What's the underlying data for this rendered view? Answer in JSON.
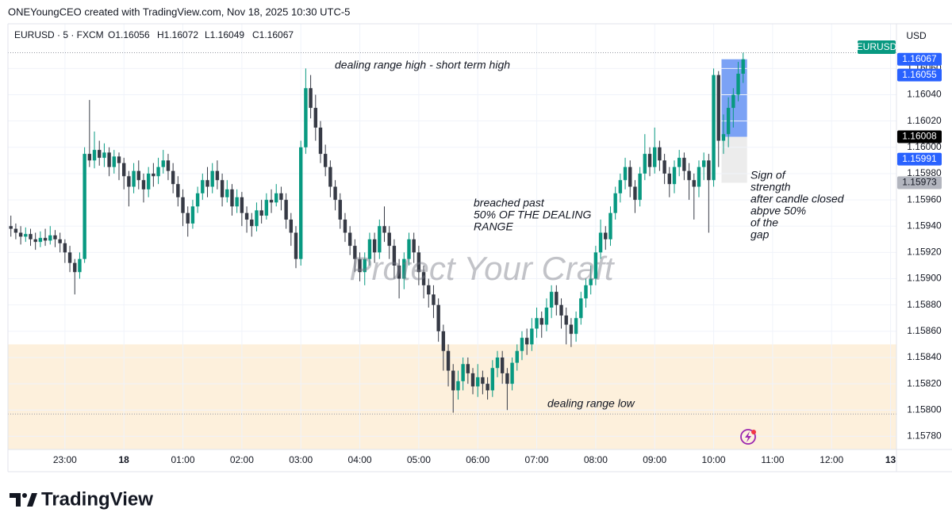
{
  "header": {
    "credit": "ONEYoungCEO created with TradingView.com, Nov 18, 2025 10:30 UTC-5",
    "symbol": "EURUSD · 5 · FXCM",
    "ohlc": [
      "O1.16056",
      "H1.16072",
      "L1.16049",
      "C1.16067"
    ],
    "currency": "USD",
    "symbol_tag": "EURUSD"
  },
  "footer": {
    "logo": "TradingView"
  },
  "chart_data": {
    "type": "candlestick",
    "up_color": "#089981",
    "down_color": "#363a45",
    "x": [
      1325,
      1330,
      1335,
      1340,
      1345,
      1350,
      1355,
      1360,
      1365,
      1370,
      1375,
      1380,
      1385,
      1390,
      1395,
      1400,
      1405,
      1410,
      1415,
      1420,
      1425,
      1430,
      1435,
      1440,
      1445,
      1450,
      1455,
      1460,
      1465,
      1470,
      1475,
      1480,
      1485,
      1490,
      1495,
      1500,
      1505,
      1510,
      1515,
      1520,
      1525,
      1530,
      1535,
      1540,
      1545,
      1550,
      1555,
      1560,
      1565,
      1570,
      1575,
      1580,
      1585,
      1590,
      1595,
      1600,
      1605,
      1610,
      1615,
      1620,
      1625,
      1630,
      1635,
      1640,
      1645,
      1650,
      1655,
      1660,
      1665,
      1670,
      1675,
      1680,
      1685,
      1690,
      1695,
      1700,
      1705,
      1710,
      1715,
      1720,
      1725,
      1730,
      1735,
      1740,
      1745,
      1750,
      1755,
      1760,
      1765,
      1770,
      1775,
      1780,
      1785,
      1790,
      1795,
      1800,
      1805,
      1810,
      1815,
      1820,
      1825,
      1830,
      1835,
      1840,
      1845,
      1850,
      1855,
      1860,
      1865,
      1870,
      1875,
      1880,
      1885,
      1890,
      1895,
      1900,
      1905,
      1910,
      1915,
      1920,
      1925,
      1930,
      1935,
      1940,
      1945,
      1950,
      1955,
      1960,
      1965,
      1970,
      1975,
      1980,
      1985,
      1990,
      1995,
      2000,
      2005,
      2010,
      2015,
      2020,
      2025,
      2030,
      2035,
      2040,
      2045,
      2050,
      2055,
      2060,
      2065,
      2070
    ],
    "open": [
      1.1594,
      1.15938,
      1.15935,
      1.15932,
      1.15934,
      1.1593,
      1.15928,
      1.15931,
      1.15929,
      1.15933,
      1.1593,
      1.15927,
      1.1592,
      1.15912,
      1.15905,
      1.15915,
      1.15995,
      1.1599,
      1.15998,
      1.15992,
      1.15996,
      1.15985,
      1.15993,
      1.15988,
      1.15978,
      1.1597,
      1.15982,
      1.15975,
      1.15968,
      1.1598,
      1.15978,
      1.15985,
      1.1599,
      1.15982,
      1.15972,
      1.15962,
      1.1595,
      1.15942,
      1.15955,
      1.15965,
      1.15975,
      1.1597,
      1.15982,
      1.15975,
      1.15962,
      1.15968,
      1.15955,
      1.15962,
      1.1595,
      1.15945,
      1.1594,
      1.15952,
      1.15948,
      1.1596,
      1.15958,
      1.15965,
      1.1596,
      1.15945,
      1.15935,
      1.15915,
      1.16,
      1.16045,
      1.1603,
      1.16015,
      1.15995,
      1.15985,
      1.1597,
      1.1596,
      1.15945,
      1.15935,
      1.15925,
      1.15915,
      1.15905,
      1.15915,
      1.1593,
      1.1592,
      1.1594,
      1.15935,
      1.15925,
      1.1591,
      1.159,
      1.15915,
      1.1593,
      1.1592,
      1.15905,
      1.15895,
      1.15888,
      1.1588,
      1.1586,
      1.15845,
      1.1583,
      1.15815,
      1.15822,
      1.15835,
      1.15828,
      1.15818,
      1.15825,
      1.1582,
      1.15815,
      1.15832,
      1.1584,
      1.15828,
      1.1582,
      1.15836,
      1.15845,
      1.15855,
      1.1585,
      1.15862,
      1.1587,
      1.15865,
      1.15878,
      1.1589,
      1.1588,
      1.15872,
      1.15865,
      1.15858,
      1.1587,
      1.15885,
      1.15895,
      1.159,
      1.1592,
      1.15935,
      1.1593,
      1.1595,
      1.15965,
      1.15975,
      1.15985,
      1.1597,
      1.1596,
      1.1598,
      1.15995,
      1.15985,
      1.16,
      1.1599,
      1.1598,
      1.15972,
      1.15985,
      1.15992,
      1.15982,
      1.15975,
      1.1597,
      1.15985,
      1.1599,
      1.15975,
      1.16055,
      1.16005,
      1.1601,
      1.1603,
      1.1604,
      1.16056
    ],
    "high": [
      1.15948,
      1.15942,
      1.1594,
      1.15939,
      1.15938,
      1.15935,
      1.15936,
      1.15938,
      1.1594,
      1.15937,
      1.15935,
      1.1593,
      1.15925,
      1.15915,
      1.1592,
      1.16,
      1.16036,
      1.16012,
      1.16005,
      1.16003,
      1.16,
      1.15998,
      1.15996,
      1.15992,
      1.15982,
      1.15988,
      1.1599,
      1.1598,
      1.15985,
      1.15988,
      1.15992,
      1.15998,
      1.15995,
      1.15988,
      1.15978,
      1.15968,
      1.15955,
      1.1596,
      1.1597,
      1.1598,
      1.15985,
      1.15988,
      1.1599,
      1.1598,
      1.15975,
      1.15972,
      1.15968,
      1.15966,
      1.15955,
      1.1595,
      1.15958,
      1.1596,
      1.15965,
      1.15968,
      1.15972,
      1.1597,
      1.15965,
      1.1595,
      1.1594,
      1.16005,
      1.1606,
      1.16055,
      1.1604,
      1.1602,
      1.16002,
      1.1599,
      1.15975,
      1.15965,
      1.1595,
      1.1594,
      1.1593,
      1.1592,
      1.1592,
      1.15935,
      1.15935,
      1.15945,
      1.15955,
      1.1594,
      1.1593,
      1.15915,
      1.1592,
      1.15935,
      1.15935,
      1.15925,
      1.1591,
      1.159,
      1.15895,
      1.15885,
      1.15865,
      1.1585,
      1.15835,
      1.1583,
      1.1584,
      1.1584,
      1.15832,
      1.15835,
      1.1583,
      1.15825,
      1.15838,
      1.15845,
      1.15845,
      1.15832,
      1.1584,
      1.1585,
      1.1586,
      1.15862,
      1.1587,
      1.15878,
      1.15875,
      1.15885,
      1.15895,
      1.15895,
      1.15885,
      1.15878,
      1.1587,
      1.15875,
      1.1589,
      1.159,
      1.1591,
      1.15925,
      1.15945,
      1.1594,
      1.15955,
      1.1597,
      1.1598,
      1.15992,
      1.1599,
      1.15975,
      1.15985,
      1.1601,
      1.16,
      1.16015,
      1.16005,
      1.15995,
      1.15985,
      1.1599,
      1.15998,
      1.15996,
      1.15988,
      1.1598,
      1.1599,
      1.15996,
      1.15995,
      1.1606,
      1.16058,
      1.16025,
      1.16038,
      1.16045,
      1.16065,
      1.16072
    ],
    "low": [
      1.15932,
      1.1593,
      1.15926,
      1.15928,
      1.15925,
      1.15922,
      1.15924,
      1.15925,
      1.15926,
      1.15924,
      1.1592,
      1.15912,
      1.15905,
      1.15888,
      1.159,
      1.15912,
      1.15985,
      1.15984,
      1.15986,
      1.15985,
      1.15978,
      1.1598,
      1.15975,
      1.15968,
      1.15955,
      1.15965,
      1.15968,
      1.15958,
      1.15962,
      1.1597,
      1.15972,
      1.1598,
      1.15975,
      1.15965,
      1.15955,
      1.1594,
      1.15932,
      1.15938,
      1.1595,
      1.1596,
      1.15962,
      1.15965,
      1.15968,
      1.15955,
      1.15958,
      1.15948,
      1.1595,
      1.1594,
      1.15935,
      1.15932,
      1.15936,
      1.15942,
      1.15945,
      1.1595,
      1.15955,
      1.15952,
      1.15938,
      1.15925,
      1.15908,
      1.1591,
      1.15995,
      1.16022,
      1.16005,
      1.15988,
      1.15978,
      1.15962,
      1.15952,
      1.15938,
      1.15928,
      1.15918,
      1.15905,
      1.15898,
      1.15895,
      1.1591,
      1.15912,
      1.15915,
      1.15928,
      1.15915,
      1.159,
      1.15885,
      1.15892,
      1.1591,
      1.15912,
      1.15895,
      1.15885,
      1.15878,
      1.1587,
      1.15852,
      1.1583,
      1.15818,
      1.15798,
      1.15808,
      1.15815,
      1.1582,
      1.15812,
      1.1581,
      1.15812,
      1.15808,
      1.1581,
      1.15825,
      1.1582,
      1.158,
      1.15815,
      1.1583,
      1.15838,
      1.15842,
      1.15845,
      1.15855,
      1.15855,
      1.1586,
      1.1587,
      1.15872,
      1.15862,
      1.1585,
      1.15848,
      1.15852,
      1.15865,
      1.15878,
      1.15888,
      1.15895,
      1.15915,
      1.15922,
      1.15925,
      1.15945,
      1.15958,
      1.15968,
      1.15962,
      1.1595,
      1.15955,
      1.15975,
      1.15978,
      1.1598,
      1.15982,
      1.15972,
      1.15962,
      1.15965,
      1.15978,
      1.15975,
      1.1596,
      1.15945,
      1.15962,
      1.15975,
      1.15935,
      1.1597,
      1.15985,
      1.15995,
      1.16,
      1.16015,
      1.16035,
      1.16049
    ],
    "close": [
      1.15938,
      1.15935,
      1.15932,
      1.15934,
      1.1593,
      1.15928,
      1.15931,
      1.15929,
      1.15933,
      1.1593,
      1.15927,
      1.1592,
      1.15912,
      1.15905,
      1.15915,
      1.15995,
      1.1599,
      1.15998,
      1.15992,
      1.15996,
      1.15985,
      1.15993,
      1.15988,
      1.15978,
      1.1597,
      1.15982,
      1.15975,
      1.15968,
      1.1598,
      1.15978,
      1.15985,
      1.1599,
      1.15982,
      1.15972,
      1.15962,
      1.1595,
      1.15942,
      1.15955,
      1.15965,
      1.15975,
      1.1597,
      1.15982,
      1.15975,
      1.15962,
      1.15968,
      1.15955,
      1.15962,
      1.1595,
      1.15945,
      1.1594,
      1.15952,
      1.15948,
      1.1596,
      1.15958,
      1.15965,
      1.1596,
      1.15945,
      1.15935,
      1.15915,
      1.16,
      1.16045,
      1.1603,
      1.16015,
      1.15995,
      1.15985,
      1.1597,
      1.1596,
      1.15945,
      1.15935,
      1.15925,
      1.15915,
      1.15905,
      1.15915,
      1.1593,
      1.1592,
      1.1594,
      1.15935,
      1.15925,
      1.1591,
      1.159,
      1.15915,
      1.1593,
      1.1592,
      1.15905,
      1.15895,
      1.15888,
      1.1588,
      1.1586,
      1.15845,
      1.1583,
      1.15815,
      1.15822,
      1.15835,
      1.15828,
      1.15818,
      1.15825,
      1.1582,
      1.15815,
      1.15832,
      1.1584,
      1.15828,
      1.1582,
      1.15836,
      1.15845,
      1.15855,
      1.1585,
      1.15862,
      1.1587,
      1.15865,
      1.15878,
      1.1589,
      1.1588,
      1.15872,
      1.15865,
      1.15858,
      1.1587,
      1.15885,
      1.15895,
      1.159,
      1.1592,
      1.15935,
      1.1593,
      1.1595,
      1.15965,
      1.15975,
      1.15985,
      1.1597,
      1.1596,
      1.1598,
      1.15995,
      1.15985,
      1.16,
      1.1599,
      1.1598,
      1.15972,
      1.15985,
      1.15992,
      1.15982,
      1.15975,
      1.1597,
      1.15985,
      1.1599,
      1.15975,
      1.16055,
      1.16005,
      1.1601,
      1.1603,
      1.1604,
      1.16056,
      1.16067
    ],
    "xlim": [
      1322,
      2226
    ],
    "xticks": [
      {
        "value": 1380,
        "label": "23:00"
      },
      {
        "value": 1440,
        "label": "18"
      },
      {
        "value": 1500,
        "label": "01:00"
      },
      {
        "value": 1560,
        "label": "02:00"
      },
      {
        "value": 1620,
        "label": "03:00"
      },
      {
        "value": 1680,
        "label": "04:00"
      },
      {
        "value": 1740,
        "label": "05:00"
      },
      {
        "value": 1800,
        "label": "06:00"
      },
      {
        "value": 1860,
        "label": "07:00"
      },
      {
        "value": 1920,
        "label": "08:00"
      },
      {
        "value": 1980,
        "label": "09:00"
      },
      {
        "value": 2040,
        "label": "10:00"
      },
      {
        "value": 2100,
        "label": "11:00"
      },
      {
        "value": 2160,
        "label": "12:00"
      },
      {
        "value": 2220,
        "label": "13"
      }
    ],
    "ylim": [
      1.1577,
      1.16094
    ],
    "yticks": [
      {
        "value": 1.1578,
        "label": "1.15780"
      },
      {
        "value": 1.158,
        "label": "1.15800"
      },
      {
        "value": 1.1582,
        "label": "1.15820"
      },
      {
        "value": 1.1584,
        "label": "1.15840"
      },
      {
        "value": 1.1586,
        "label": "1.15860"
      },
      {
        "value": 1.1588,
        "label": "1.15880"
      },
      {
        "value": 1.159,
        "label": "1.15900"
      },
      {
        "value": 1.1592,
        "label": "1.15920"
      },
      {
        "value": 1.1594,
        "label": "1.15940"
      },
      {
        "value": 1.1596,
        "label": "1.15960"
      },
      {
        "value": 1.1598,
        "label": "1.15980"
      },
      {
        "value": 1.16,
        "label": "1.16000"
      },
      {
        "value": 1.1602,
        "label": "1.16020"
      },
      {
        "value": 1.1604,
        "label": "1.16040"
      },
      {
        "value": 1.1606,
        "label": "1.16060"
      }
    ],
    "grid": true,
    "zones": [
      {
        "x": [
          1322,
          2226
        ],
        "y": [
          1.1577,
          1.1585
        ],
        "color": "#fdf0dc"
      },
      {
        "x": [
          2048,
          2074
        ],
        "y": [
          1.15973,
          1.16008
        ],
        "color": "#ececec"
      },
      {
        "x": [
          2048,
          2074
        ],
        "y": [
          1.16008,
          1.16067
        ],
        "color": "#7ba2f5"
      }
    ],
    "levels": [
      1.16072,
      1.15797
    ],
    "price_tags": [
      {
        "value": 1.16067,
        "color": "#2962ff",
        "text_color": "#ffffff"
      },
      {
        "value": 1.16055,
        "color": "#2962ff",
        "text_color": "#ffffff"
      },
      {
        "value": 1.16008,
        "color": "#000000",
        "text_color": "#ffffff"
      },
      {
        "value": 1.15991,
        "color": "#2962ff",
        "text_color": "#ffffff"
      },
      {
        "value": 1.15973,
        "color": "#b2b5be",
        "text_color": "#131722"
      }
    ],
    "annotations": [
      {
        "lines": [
          "dealing range high - short term high"
        ]
      },
      {
        "lines": [
          "breached past",
          "50% OF THE DEALING",
          "RANGE"
        ]
      },
      {
        "lines": [
          "Protect Your Craft"
        ]
      },
      {
        "lines": [
          "dealing range low"
        ]
      },
      {
        "lines": [
          "Sign of",
          "strength",
          "after candle closed",
          "abpve 50%",
          "of the",
          "gap"
        ]
      }
    ]
  }
}
